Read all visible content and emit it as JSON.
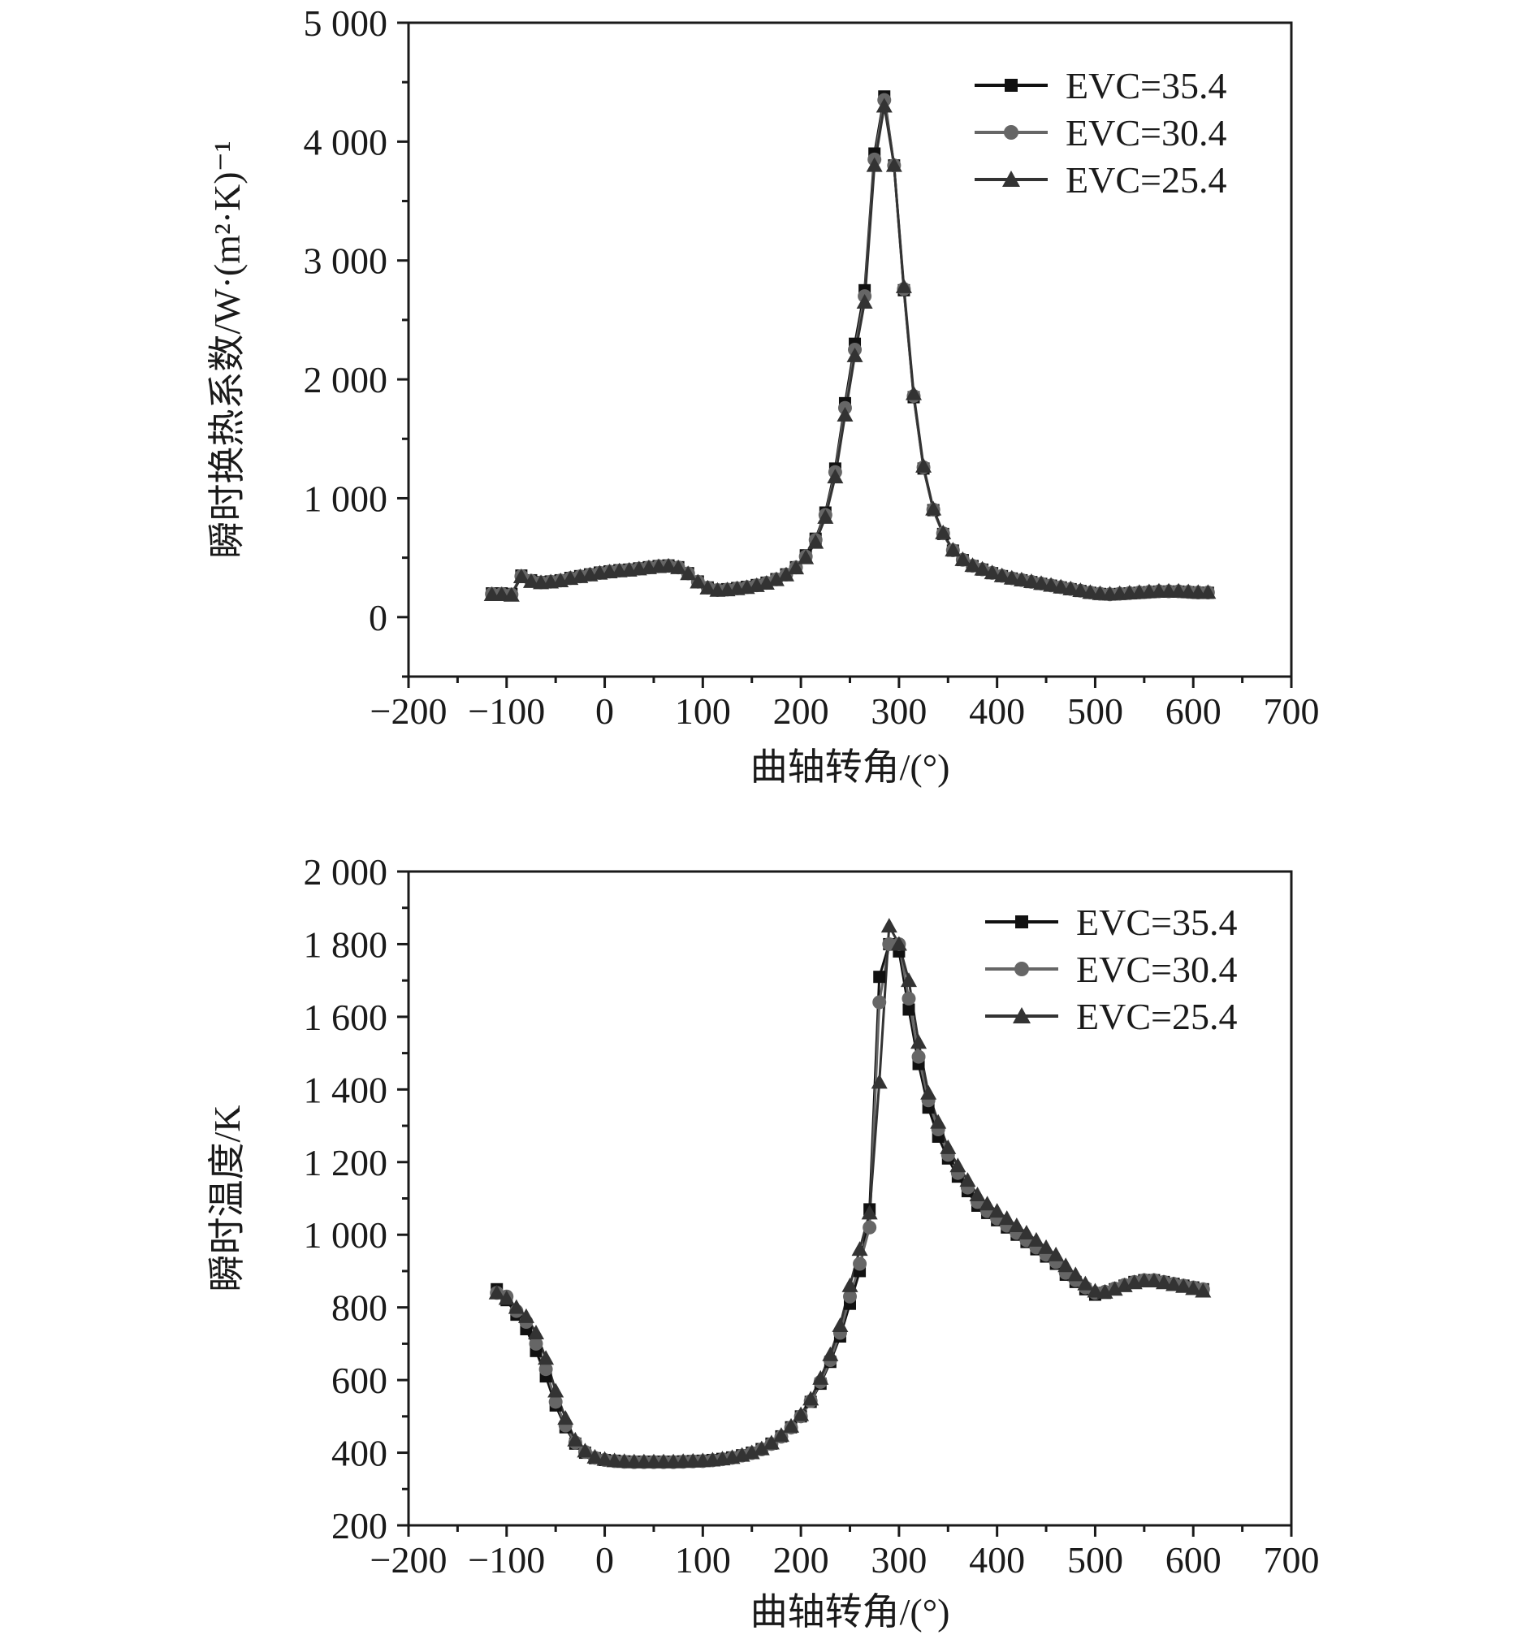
{
  "colors": {
    "series_35_4": "#111111",
    "series_30_4": "#666666",
    "series_25_4": "#333333",
    "axis": "#1a1a1a"
  },
  "chart_data": [
    {
      "id": "htc",
      "type": "line",
      "xlabel": "曲轴转角/(°)",
      "ylabel": "瞬时换热系数/W·(m²·K)⁻¹",
      "xlim": [
        -200,
        700
      ],
      "ylim": [
        -500,
        5000
      ],
      "xticks": [
        -200,
        -100,
        0,
        100,
        200,
        300,
        400,
        500,
        600,
        700
      ],
      "xtick_labels": [
        "−200",
        "−100",
        "0",
        "100",
        "200",
        "300",
        "400",
        "500",
        "600",
        "700"
      ],
      "yticks": [
        0,
        1000,
        2000,
        3000,
        4000,
        5000
      ],
      "ytick_labels": [
        "0",
        "1 000",
        "2 000",
        "3 000",
        "4 000",
        "5 000"
      ],
      "grid": false,
      "legend_position": "top-right",
      "x": [
        -115,
        -105,
        -95,
        -85,
        -75,
        -65,
        -55,
        -45,
        -35,
        -25,
        -15,
        -5,
        5,
        15,
        25,
        35,
        45,
        55,
        65,
        75,
        85,
        95,
        105,
        115,
        125,
        135,
        145,
        155,
        165,
        175,
        185,
        195,
        205,
        215,
        225,
        235,
        245,
        255,
        265,
        275,
        285,
        295,
        305,
        315,
        325,
        335,
        345,
        355,
        365,
        375,
        385,
        395,
        405,
        415,
        425,
        435,
        445,
        455,
        465,
        475,
        485,
        495,
        505,
        515,
        525,
        535,
        545,
        555,
        565,
        575,
        585,
        595,
        605,
        615
      ],
      "series": [
        {
          "name": "EVC=35.4",
          "marker": "square",
          "values": [
            200,
            200,
            195,
            350,
            310,
            295,
            300,
            310,
            330,
            345,
            360,
            375,
            385,
            395,
            400,
            410,
            420,
            430,
            435,
            420,
            370,
            300,
            250,
            230,
            235,
            245,
            255,
            270,
            290,
            320,
            360,
            420,
            520,
            660,
            880,
            1250,
            1800,
            2300,
            2750,
            3900,
            4380,
            3800,
            2750,
            1850,
            1250,
            900,
            700,
            560,
            480,
            430,
            400,
            370,
            345,
            325,
            310,
            295,
            280,
            265,
            250,
            235,
            220,
            205,
            195,
            190,
            195,
            200,
            205,
            210,
            215,
            215,
            215,
            210,
            205,
            205
          ]
        },
        {
          "name": "EVC=30.4",
          "marker": "circle",
          "values": [
            195,
            195,
            190,
            345,
            305,
            292,
            298,
            308,
            328,
            343,
            358,
            372,
            383,
            392,
            398,
            408,
            418,
            428,
            432,
            418,
            368,
            298,
            248,
            228,
            232,
            242,
            252,
            268,
            288,
            318,
            358,
            418,
            510,
            650,
            860,
            1220,
            1760,
            2250,
            2700,
            3850,
            4350,
            3800,
            2760,
            1860,
            1260,
            905,
            705,
            562,
            482,
            432,
            402,
            372,
            347,
            327,
            312,
            297,
            282,
            267,
            252,
            237,
            222,
            207,
            197,
            192,
            197,
            202,
            207,
            212,
            217,
            217,
            217,
            212,
            207,
            207
          ]
        },
        {
          "name": "EVC=25.4",
          "marker": "triangle",
          "values": [
            190,
            190,
            185,
            340,
            300,
            290,
            296,
            306,
            326,
            341,
            356,
            370,
            381,
            390,
            396,
            406,
            416,
            426,
            430,
            416,
            366,
            296,
            246,
            226,
            230,
            240,
            250,
            266,
            286,
            316,
            356,
            415,
            500,
            630,
            840,
            1180,
            1700,
            2200,
            2650,
            3800,
            4300,
            3800,
            2780,
            1880,
            1270,
            910,
            710,
            565,
            485,
            435,
            404,
            374,
            349,
            329,
            314,
            299,
            284,
            269,
            254,
            239,
            224,
            209,
            199,
            194,
            199,
            204,
            209,
            214,
            219,
            219,
            219,
            214,
            209,
            209
          ]
        }
      ]
    },
    {
      "id": "temp",
      "type": "line",
      "xlabel": "曲轴转角/(°)",
      "ylabel": "瞬时温度/K",
      "xlim": [
        -200,
        700
      ],
      "ylim": [
        200,
        2000
      ],
      "xticks": [
        -200,
        -100,
        0,
        100,
        200,
        300,
        400,
        500,
        600,
        700
      ],
      "xtick_labels": [
        "−200",
        "−100",
        "0",
        "100",
        "200",
        "300",
        "400",
        "500",
        "600",
        "700"
      ],
      "yticks": [
        200,
        400,
        600,
        800,
        1000,
        1200,
        1400,
        1600,
        1800,
        2000
      ],
      "ytick_labels": [
        "200",
        "400",
        "600",
        "800",
        "1 000",
        "1 200",
        "1 400",
        "1 600",
        "1 800",
        "2 000"
      ],
      "grid": false,
      "legend_position": "top-right",
      "x": [
        -110,
        -100,
        -90,
        -80,
        -70,
        -60,
        -50,
        -40,
        -30,
        -20,
        -10,
        0,
        10,
        20,
        30,
        40,
        50,
        60,
        70,
        80,
        90,
        100,
        110,
        120,
        130,
        140,
        150,
        160,
        170,
        180,
        190,
        200,
        210,
        220,
        230,
        240,
        250,
        260,
        270,
        280,
        290,
        300,
        310,
        320,
        330,
        340,
        350,
        360,
        370,
        380,
        390,
        400,
        410,
        420,
        430,
        440,
        450,
        460,
        470,
        480,
        490,
        500,
        510,
        520,
        530,
        540,
        550,
        560,
        570,
        580,
        590,
        600,
        610
      ],
      "series": [
        {
          "name": "EVC=35.4",
          "marker": "square",
          "values": [
            850,
            820,
            780,
            740,
            680,
            610,
            530,
            470,
            425,
            400,
            385,
            380,
            378,
            376,
            375,
            375,
            375,
            375,
            375,
            376,
            377,
            378,
            380,
            383,
            387,
            393,
            400,
            410,
            425,
            445,
            470,
            500,
            540,
            590,
            650,
            720,
            810,
            900,
            1070,
            1710,
            1800,
            1780,
            1620,
            1470,
            1350,
            1270,
            1210,
            1160,
            1120,
            1080,
            1060,
            1040,
            1020,
            1000,
            980,
            960,
            940,
            920,
            890,
            870,
            850,
            835,
            840,
            850,
            860,
            870,
            875,
            875,
            870,
            865,
            860,
            855,
            850
          ]
        },
        {
          "name": "EVC=30.4",
          "marker": "circle",
          "values": [
            840,
            830,
            790,
            760,
            700,
            630,
            540,
            475,
            428,
            402,
            386,
            380,
            377,
            375,
            374,
            374,
            374,
            374,
            374,
            375,
            376,
            377,
            379,
            382,
            386,
            392,
            399,
            409,
            424,
            444,
            469,
            500,
            542,
            595,
            655,
            730,
            830,
            920,
            1020,
            1640,
            1800,
            1800,
            1650,
            1490,
            1370,
            1290,
            1220,
            1170,
            1130,
            1090,
            1065,
            1045,
            1025,
            1005,
            985,
            965,
            945,
            925,
            895,
            875,
            855,
            840,
            843,
            852,
            862,
            870,
            875,
            875,
            870,
            865,
            860,
            855,
            850
          ]
        },
        {
          "name": "EVC=25.4",
          "marker": "triangle",
          "values": [
            840,
            825,
            800,
            775,
            730,
            660,
            570,
            495,
            435,
            405,
            388,
            382,
            378,
            376,
            375,
            375,
            375,
            375,
            375,
            376,
            377,
            378,
            380,
            383,
            387,
            393,
            400,
            411,
            427,
            448,
            473,
            505,
            548,
            605,
            670,
            750,
            860,
            960,
            1060,
            1420,
            1850,
            1800,
            1700,
            1530,
            1390,
            1310,
            1240,
            1190,
            1150,
            1110,
            1085,
            1065,
            1045,
            1025,
            1005,
            985,
            965,
            945,
            915,
            890,
            865,
            845,
            842,
            850,
            860,
            868,
            873,
            873,
            868,
            863,
            858,
            852,
            845
          ]
        }
      ]
    }
  ]
}
